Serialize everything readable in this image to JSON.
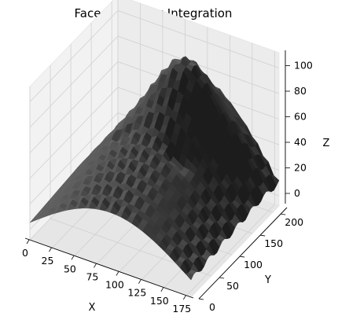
{
  "chart_data": {
    "type": "surface3d",
    "title": "Face 007 - Row Integration",
    "xlabel": "X",
    "ylabel": "Y",
    "zlabel": "Z",
    "xlim": [
      0,
      180
    ],
    "ylim": [
      0,
      215
    ],
    "zlim": [
      -8,
      112
    ],
    "xticks": [
      0,
      25,
      50,
      75,
      100,
      125,
      150,
      175
    ],
    "yticks": [
      0,
      50,
      100,
      150,
      200
    ],
    "zticks": [
      0,
      20,
      40,
      60,
      80,
      100
    ],
    "grid": true,
    "colormap": "gray",
    "surface_shape": "face height map: low rim (~10) along Y=0 edge, rising to a central ridge peaking near Z≈110 around X≈100, Y≈160"
  }
}
